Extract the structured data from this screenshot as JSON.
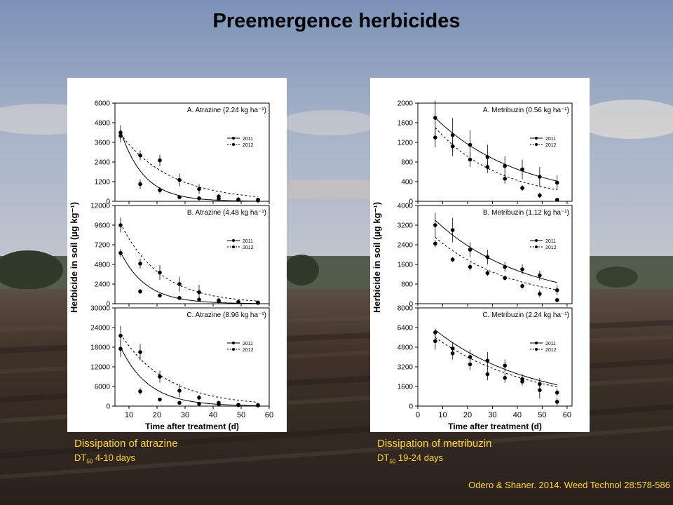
{
  "slide": {
    "title": "Preemergence herbicides",
    "citation": "Odero & Shaner. 2014. Weed Technol 28:578-586"
  },
  "captions": {
    "left": {
      "title": "Dissipation of atrazine",
      "dt_prefix": "DT",
      "dt_sub": "50",
      "dt_value": " 4-10 days"
    },
    "right": {
      "title": "Dissipation of metribuzin",
      "dt_prefix": "DT",
      "dt_sub": "50",
      "dt_value": " 19-24 days"
    }
  },
  "colors": {
    "caption": "#ffd43a",
    "sky_top": "#7f95ba",
    "sky_bottom": "#b9c2cf",
    "soil": "#3b2f26",
    "marker": "#000000"
  },
  "chart_data": [
    {
      "type": "scatter",
      "figure": "atrazine",
      "xlabel": "Time after treatment (d)",
      "ylabel": "Herbicide in soil (µg kg⁻¹)",
      "x_ticks": [
        10,
        20,
        30,
        40,
        50,
        60
      ],
      "xlim": [
        5,
        60
      ],
      "legend": [
        "2011",
        "2012"
      ],
      "legend_position": "right",
      "panels": [
        {
          "label": "A. Atrazine (2.24  kg ha⁻¹)",
          "ylim": [
            0,
            6000
          ],
          "y_ticks": [
            0,
            1200,
            2400,
            3600,
            4800,
            6000
          ],
          "series": [
            {
              "name": "2011",
              "x": [
                7,
                14,
                21,
                28,
                35,
                42,
                49,
                56
              ],
              "y": [
                4200,
                1050,
                680,
                250,
                180,
                150,
                80,
                50
              ],
              "err": [
                450,
                300,
                200,
                100,
                80,
                60,
                40,
                30
              ],
              "line": "solid",
              "c0": 4300,
              "k": 0.12
            },
            {
              "name": "2012",
              "x": [
                7,
                14,
                21,
                28,
                35,
                42,
                49,
                56
              ],
              "y": [
                4000,
                2800,
                2500,
                1300,
                750,
                300,
                120,
                100
              ],
              "err": [
                400,
                300,
                350,
                400,
                300,
                150,
                80,
                50
              ],
              "line": "dashed",
              "c0": 4100,
              "k": 0.055
            }
          ]
        },
        {
          "label": "B. Atrazine (4.48 kg ha⁻¹)",
          "ylim": [
            0,
            12000
          ],
          "y_ticks": [
            0,
            2400,
            4800,
            7200,
            9600,
            12000
          ],
          "series": [
            {
              "name": "2011",
              "x": [
                7,
                14,
                21,
                28,
                35,
                42,
                49,
                56
              ],
              "y": [
                6200,
                1500,
                1000,
                700,
                500,
                300,
                200,
                100
              ],
              "err": [
                500,
                300,
                200,
                150,
                100,
                80,
                60,
                40
              ],
              "line": "solid",
              "c0": 6300,
              "k": 0.11
            },
            {
              "name": "2012",
              "x": [
                7,
                14,
                21,
                28,
                35,
                42,
                49,
                56
              ],
              "y": [
                9600,
                4900,
                3800,
                2400,
                1400,
                400,
                200,
                150
              ],
              "err": [
                900,
                600,
                900,
                900,
                900,
                300,
                150,
                80
              ],
              "line": "dashed",
              "c0": 9800,
              "k": 0.07
            }
          ]
        },
        {
          "label": "C. Atrazine (8.96 kg ha⁻¹)",
          "ylim": [
            0,
            30000
          ],
          "y_ticks": [
            0,
            6000,
            12000,
            18000,
            24000,
            30000
          ],
          "series": [
            {
              "name": "2011",
              "x": [
                7,
                14,
                21,
                28,
                35,
                42,
                49,
                56
              ],
              "y": [
                17500,
                4500,
                2000,
                1000,
                700,
                500,
                300,
                200
              ],
              "err": [
                2500,
                1000,
                600,
                400,
                300,
                200,
                100,
                80
              ],
              "line": "solid",
              "c0": 18000,
              "k": 0.1
            },
            {
              "name": "2012",
              "x": [
                7,
                14,
                21,
                28,
                35,
                42,
                49,
                56
              ],
              "y": [
                21500,
                16500,
                9000,
                4700,
                2600,
                1000,
                400,
                300
              ],
              "err": [
                3000,
                2500,
                1800,
                2000,
                800,
                500,
                200,
                100
              ],
              "line": "dashed",
              "c0": 22000,
              "k": 0.06
            }
          ]
        }
      ]
    },
    {
      "type": "scatter",
      "figure": "metribuzin",
      "xlabel": "Time after treatment (d)",
      "ylabel": "Herbicide in soil (µg kg⁻¹)",
      "x_ticks": [
        0,
        10,
        20,
        30,
        40,
        50,
        60
      ],
      "xlim": [
        0,
        62
      ],
      "legend": [
        "2011",
        "2012"
      ],
      "legend_position": "right",
      "panels": [
        {
          "label": "A. Metribuzin (0.56  kg ha⁻¹)",
          "ylim": [
            0,
            2000
          ],
          "y_ticks": [
            0,
            400,
            800,
            1200,
            1600,
            2000
          ],
          "series": [
            {
              "name": "2011",
              "x": [
                7,
                14,
                21,
                28,
                35,
                42,
                49,
                56
              ],
              "y": [
                1700,
                1350,
                1150,
                900,
                720,
                650,
                500,
                380
              ],
              "err": [
                350,
                350,
                300,
                250,
                200,
                200,
                200,
                150
              ],
              "line": "solid",
              "c0": 1700,
              "k": 0.029
            },
            {
              "name": "2012",
              "x": [
                7,
                14,
                21,
                28,
                35,
                42,
                49,
                56
              ],
              "y": [
                1300,
                1120,
                850,
                700,
                460,
                270,
                120,
                30
              ],
              "err": [
                200,
                200,
                150,
                120,
                100,
                60,
                50,
                20
              ],
              "line": "dashed",
              "c0": 1500,
              "k": 0.038
            }
          ]
        },
        {
          "label": "B. Metribuzin (1.12 kg ha⁻¹)",
          "ylim": [
            0,
            4000
          ],
          "y_ticks": [
            0,
            800,
            1600,
            2400,
            3200,
            4000
          ],
          "series": [
            {
              "name": "2011",
              "x": [
                7,
                14,
                21,
                28,
                35,
                42,
                49,
                56
              ],
              "y": [
                3200,
                3000,
                2200,
                1900,
                1500,
                1400,
                1150,
                550
              ],
              "err": [
                500,
                500,
                300,
                300,
                200,
                200,
                200,
                200
              ],
              "line": "solid",
              "c0": 3400,
              "k": 0.028
            },
            {
              "name": "2012",
              "x": [
                7,
                14,
                21,
                28,
                35,
                42,
                49,
                56
              ],
              "y": [
                2450,
                1800,
                1500,
                1250,
                1050,
                720,
                400,
                150
              ],
              "err": [
                150,
                100,
                150,
                120,
                100,
                100,
                150,
                100
              ],
              "line": "dashed",
              "c0": 2700,
              "k": 0.032
            }
          ]
        },
        {
          "label": "C. Metribuzin (2.24 kg ha⁻¹)",
          "ylim": [
            0,
            8000
          ],
          "y_ticks": [
            0,
            1600,
            3200,
            4800,
            6400,
            8000
          ],
          "series": [
            {
              "name": "2011",
              "x": [
                7,
                14,
                21,
                28,
                35,
                42,
                49,
                56
              ],
              "y": [
                6000,
                4700,
                4000,
                3700,
                3300,
                2200,
                1800,
                1100
              ],
              "err": [
                300,
                500,
                600,
                700,
                500,
                400,
                500,
                300
              ],
              "line": "solid",
              "c0": 6200,
              "k": 0.026
            },
            {
              "name": "2012",
              "x": [
                7,
                14,
                21,
                28,
                35,
                42,
                49,
                56
              ],
              "y": [
                5300,
                4300,
                3400,
                2600,
                2300,
                2000,
                1300,
                350
              ],
              "err": [
                700,
                500,
                500,
                500,
                400,
                300,
                700,
                300
              ],
              "line": "dashed",
              "c0": 5600,
              "k": 0.026
            }
          ]
        }
      ]
    }
  ]
}
